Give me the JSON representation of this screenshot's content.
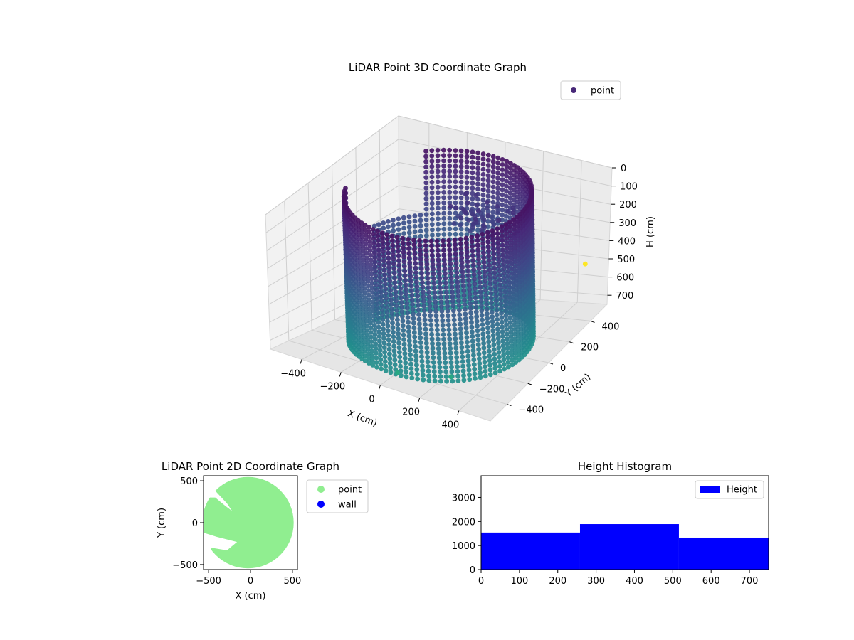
{
  "chart_data": [
    {
      "type": "scatter",
      "dimensions": "3d",
      "title": "LiDAR Point 3D Coordinate Graph",
      "xlabel": "X (cm)",
      "ylabel": "Y (cm)",
      "zlabel": "H (cm)",
      "x_ticks": [
        -400,
        -200,
        0,
        200,
        400
      ],
      "y_ticks": [
        -400,
        -200,
        0,
        200,
        400
      ],
      "z_ticks": [
        0,
        100,
        200,
        300,
        400,
        500,
        600,
        700
      ],
      "x_tick_labels": [
        "−400",
        "−200",
        "0",
        "200",
        "400"
      ],
      "y_tick_labels": [
        "−400",
        "−200",
        "0",
        "200",
        "400"
      ],
      "z_tick_labels": [
        "0",
        "100",
        "200",
        "300",
        "400",
        "500",
        "600",
        "700"
      ],
      "xlim": [
        -560,
        560
      ],
      "ylim": [
        -560,
        560
      ],
      "zlim": [
        0,
        750
      ],
      "z_axis_inverted": true,
      "colormap": "viridis",
      "grid": true,
      "legend": {
        "position": "upper right",
        "entries": [
          {
            "label": "point",
            "color": "#482878"
          }
        ]
      },
      "series": [
        {
          "name": "point",
          "description_shape": "cylindrical wall of points",
          "radius": 420,
          "z_range": [
            0,
            750
          ],
          "color_by": "height"
        }
      ]
    },
    {
      "type": "scatter",
      "title": "LiDAR Point 2D Coordinate Graph",
      "xlabel": "X (cm)",
      "ylabel": "Y (cm)",
      "xlim": [
        -560,
        560
      ],
      "ylim": [
        -560,
        560
      ],
      "x_ticks": [
        -500,
        0,
        500
      ],
      "y_ticks": [
        -500,
        0,
        500
      ],
      "x_tick_labels": [
        "−500",
        "0",
        "500"
      ],
      "y_tick_labels": [
        "−500",
        "0",
        "500"
      ],
      "legend": {
        "position": "outside right",
        "entries": [
          {
            "label": "point",
            "color": "#90ee90"
          },
          {
            "label": "wall",
            "color": "#0000ff"
          }
        ]
      },
      "series": [
        {
          "name": "point",
          "color": "#90ee90",
          "description_shape": "filled disc of radius ~500"
        },
        {
          "name": "wall",
          "color": "#0000ff",
          "values": []
        }
      ]
    },
    {
      "type": "bar",
      "subtype": "histogram",
      "title": "Height Histogram",
      "xlim": [
        0,
        750
      ],
      "ylim": [
        0,
        3900
      ],
      "x_ticks": [
        0,
        100,
        200,
        300,
        400,
        500,
        600,
        700
      ],
      "y_ticks": [
        0,
        1000,
        2000,
        3000
      ],
      "x_tick_labels": [
        "0",
        "100",
        "200",
        "300",
        "400",
        "500",
        "600",
        "700"
      ],
      "y_tick_labels": [
        "0",
        "1000",
        "2000",
        "3000"
      ],
      "legend": {
        "position": "upper right",
        "entries": [
          {
            "label": "Height",
            "color": "#0000ff"
          }
        ]
      },
      "bins": [
        [
          0,
          258
        ],
        [
          258,
          516
        ],
        [
          516,
          750
        ]
      ],
      "series": [
        {
          "name": "Height",
          "color": "#0000ff",
          "values": [
            1540,
            1890,
            1330
          ]
        }
      ]
    }
  ]
}
